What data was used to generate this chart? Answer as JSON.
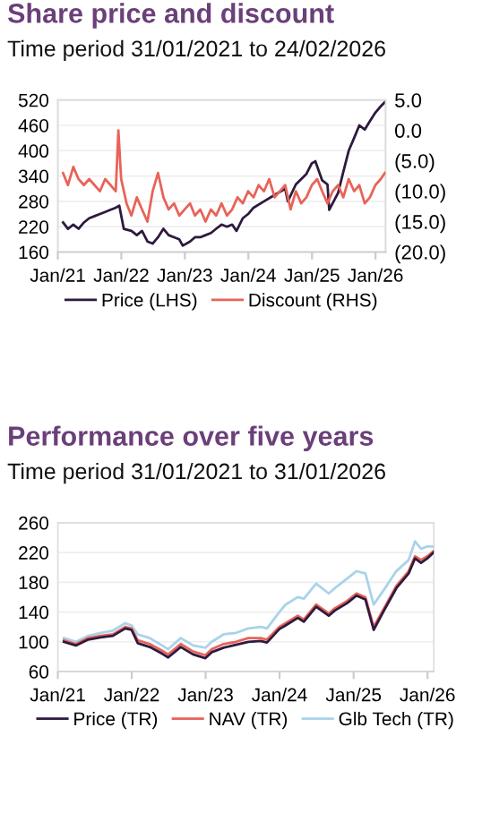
{
  "chart_data": [
    {
      "type": "line",
      "title": "Share price and discount",
      "subtitle": "Time period 31/01/2021 to 24/02/2026",
      "xlim": [
        "2021-01-01",
        "2026-02-28"
      ],
      "xticks": [
        {
          "value": "2021-01-01",
          "label": "Jan/21"
        },
        {
          "value": "2022-01-01",
          "label": "Jan/22"
        },
        {
          "value": "2023-01-01",
          "label": "Jan/23"
        },
        {
          "value": "2024-01-01",
          "label": "Jan/24"
        },
        {
          "value": "2025-01-01",
          "label": "Jan/25"
        },
        {
          "value": "2026-01-01",
          "label": "Jan/26"
        }
      ],
      "ylim": [
        160,
        520
      ],
      "yticks": [
        160,
        220,
        280,
        340,
        400,
        460,
        520
      ],
      "y2lim": [
        -20,
        5
      ],
      "y2ticks": [
        {
          "value": -20,
          "label": "(20.0)"
        },
        {
          "value": -15,
          "label": "(15.0)"
        },
        {
          "value": -10,
          "label": "(10.0)"
        },
        {
          "value": -5,
          "label": "(5.0)"
        },
        {
          "value": 0,
          "label": "0.0"
        },
        {
          "value": 5,
          "label": "5.0"
        }
      ],
      "grid": "y",
      "legend": "bottom",
      "line_style": "solid",
      "series": [
        {
          "name": "Price (LHS)",
          "color": "#2e1a3e",
          "x": [
            "2021-01-31",
            "2021-02-28",
            "2021-03-31",
            "2021-04-30",
            "2021-05-31",
            "2021-06-30",
            "2021-07-31",
            "2021-08-31",
            "2021-09-30",
            "2021-10-31",
            "2021-11-30",
            "2021-12-20",
            "2022-01-15",
            "2022-02-28",
            "2022-03-31",
            "2022-04-30",
            "2022-05-31",
            "2022-06-30",
            "2022-07-31",
            "2022-08-31",
            "2022-09-30",
            "2022-10-31",
            "2022-11-30",
            "2022-12-20",
            "2023-01-31",
            "2023-02-28",
            "2023-03-31",
            "2023-04-30",
            "2023-05-31",
            "2023-06-30",
            "2023-07-31",
            "2023-08-31",
            "2023-09-30",
            "2023-10-25",
            "2023-11-30",
            "2023-12-31",
            "2024-01-31",
            "2024-03-31",
            "2024-05-31",
            "2024-07-31",
            "2024-08-15",
            "2024-09-30",
            "2024-11-30",
            "2024-12-31",
            "2025-01-20",
            "2025-02-28",
            "2025-03-31",
            "2025-04-10",
            "2025-05-31",
            "2025-06-30",
            "2025-07-31",
            "2025-08-31",
            "2025-09-30",
            "2025-10-31",
            "2025-11-30",
            "2025-12-31",
            "2026-01-31",
            "2026-02-24"
          ],
          "values": [
            230,
            215,
            225,
            215,
            230,
            240,
            245,
            250,
            255,
            260,
            265,
            270,
            215,
            210,
            200,
            210,
            185,
            180,
            195,
            215,
            200,
            195,
            190,
            175,
            185,
            195,
            195,
            200,
            205,
            215,
            225,
            220,
            225,
            210,
            240,
            250,
            265,
            280,
            295,
            310,
            280,
            320,
            345,
            370,
            375,
            330,
            320,
            260,
            300,
            350,
            400,
            430,
            460,
            450,
            470,
            490,
            505,
            515
          ]
        },
        {
          "name": "Discount (RHS)",
          "color": "#e8635a",
          "axis": "y2",
          "x": [
            "2021-01-31",
            "2021-02-28",
            "2021-03-31",
            "2021-04-30",
            "2021-05-31",
            "2021-06-30",
            "2021-07-31",
            "2021-08-31",
            "2021-09-30",
            "2021-10-31",
            "2021-11-30",
            "2021-12-15",
            "2021-12-31",
            "2022-01-31",
            "2022-02-28",
            "2022-03-31",
            "2022-04-30",
            "2022-05-31",
            "2022-06-30",
            "2022-07-31",
            "2022-08-31",
            "2022-09-30",
            "2022-10-31",
            "2022-11-30",
            "2022-12-31",
            "2023-01-31",
            "2023-02-28",
            "2023-03-31",
            "2023-04-30",
            "2023-05-31",
            "2023-06-30",
            "2023-07-31",
            "2023-08-31",
            "2023-09-30",
            "2023-10-31",
            "2023-11-30",
            "2023-12-31",
            "2024-01-31",
            "2024-02-29",
            "2024-03-31",
            "2024-04-30",
            "2024-05-31",
            "2024-06-30",
            "2024-07-31",
            "2024-08-31",
            "2024-09-30",
            "2024-10-31",
            "2024-11-30",
            "2024-12-31",
            "2025-01-31",
            "2025-02-28",
            "2025-03-31",
            "2025-04-30",
            "2025-05-31",
            "2025-06-30",
            "2025-07-31",
            "2025-08-31",
            "2025-09-30",
            "2025-10-31",
            "2025-11-30",
            "2025-12-31",
            "2026-01-31",
            "2026-02-24"
          ],
          "values": [
            -7,
            -9,
            -6,
            -8,
            -9,
            -8,
            -9,
            -10,
            -8,
            -9,
            -10,
            0,
            -8,
            -12,
            -14,
            -11,
            -13,
            -15,
            -10,
            -7,
            -11,
            -13,
            -12,
            -14,
            -13,
            -12,
            -14,
            -13,
            -15,
            -13,
            -14,
            -12,
            -14,
            -13,
            -11,
            -12,
            -10,
            -11,
            -9,
            -10,
            -8,
            -11,
            -10,
            -9,
            -13,
            -10,
            -12,
            -11,
            -9,
            -8,
            -10,
            -12,
            -10,
            -9,
            -11,
            -8,
            -10,
            -9,
            -12,
            -11,
            -9,
            -8,
            -7
          ]
        }
      ]
    },
    {
      "type": "line",
      "title": "Performance over five years",
      "subtitle": "Time period 31/01/2021 to 31/01/2026",
      "xlim": [
        "2021-01-01",
        "2026-02-01"
      ],
      "xticks": [
        {
          "value": "2021-01-01",
          "label": "Jan/21"
        },
        {
          "value": "2022-01-01",
          "label": "Jan/22"
        },
        {
          "value": "2023-01-01",
          "label": "Jan/23"
        },
        {
          "value": "2024-01-01",
          "label": "Jan/24"
        },
        {
          "value": "2025-01-01",
          "label": "Jan/25"
        },
        {
          "value": "2026-01-01",
          "label": "Jan/26"
        }
      ],
      "ylim": [
        60,
        260
      ],
      "yticks": [
        60,
        100,
        140,
        180,
        220,
        260
      ],
      "grid": "y",
      "legend": "bottom",
      "line_style": "solid",
      "x": [
        "2021-01-31",
        "2021-03-31",
        "2021-05-31",
        "2021-07-31",
        "2021-09-30",
        "2021-11-30",
        "2021-12-31",
        "2022-01-31",
        "2022-03-31",
        "2022-05-31",
        "2022-06-30",
        "2022-08-31",
        "2022-10-31",
        "2022-12-31",
        "2023-01-31",
        "2023-03-31",
        "2023-05-31",
        "2023-07-31",
        "2023-09-30",
        "2023-10-31",
        "2023-12-31",
        "2024-01-31",
        "2024-03-31",
        "2024-04-30",
        "2024-06-30",
        "2024-08-31",
        "2024-09-30",
        "2024-11-30",
        "2025-01-15",
        "2025-02-28",
        "2025-04-10",
        "2025-05-31",
        "2025-07-31",
        "2025-09-30",
        "2025-10-31",
        "2025-11-30",
        "2025-12-31",
        "2026-01-31"
      ],
      "series": [
        {
          "name": "Price (TR)",
          "color": "#2e1a3e",
          "values": [
            100,
            95,
            103,
            106,
            108,
            118,
            116,
            98,
            93,
            84,
            79,
            93,
            83,
            78,
            86,
            92,
            96,
            100,
            101,
            99,
            117,
            122,
            132,
            127,
            147,
            135,
            142,
            152,
            162,
            157,
            116,
            142,
            172,
            192,
            212,
            206,
            212,
            220
          ]
        },
        {
          "name": "NAV (TR)",
          "color": "#e8635a",
          "values": [
            102,
            97,
            105,
            108,
            110,
            120,
            118,
            102,
            97,
            88,
            83,
            97,
            87,
            82,
            90,
            97,
            100,
            105,
            105,
            103,
            120,
            125,
            135,
            130,
            150,
            138,
            145,
            155,
            165,
            160,
            120,
            145,
            175,
            195,
            215,
            210,
            215,
            222
          ]
        },
        {
          "name": "Glb Tech (TR)",
          "color": "#a9d3ea",
          "values": [
            105,
            100,
            108,
            112,
            115,
            125,
            122,
            110,
            105,
            95,
            90,
            105,
            95,
            92,
            100,
            110,
            112,
            118,
            120,
            118,
            140,
            150,
            160,
            158,
            178,
            165,
            172,
            185,
            195,
            192,
            150,
            170,
            195,
            210,
            235,
            225,
            228,
            228
          ]
        }
      ]
    }
  ]
}
